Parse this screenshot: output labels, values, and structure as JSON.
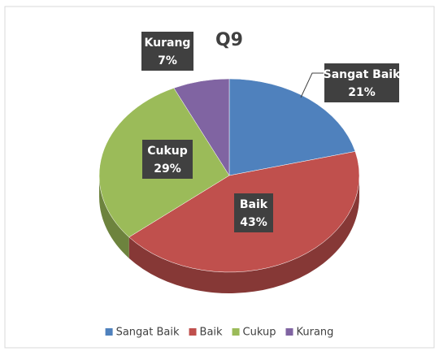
{
  "chart_data": {
    "type": "pie",
    "title": "Q9",
    "categories": [
      "Sangat Baik",
      "Baik",
      "Cukup",
      "Kurang"
    ],
    "values": [
      21,
      43,
      29,
      7
    ],
    "value_labels": [
      "21%",
      "43%",
      "29%",
      "7%"
    ],
    "colors": [
      "#4f81bd",
      "#c0504d",
      "#9bbb59",
      "#8064a2"
    ],
    "legend": "bottom"
  }
}
